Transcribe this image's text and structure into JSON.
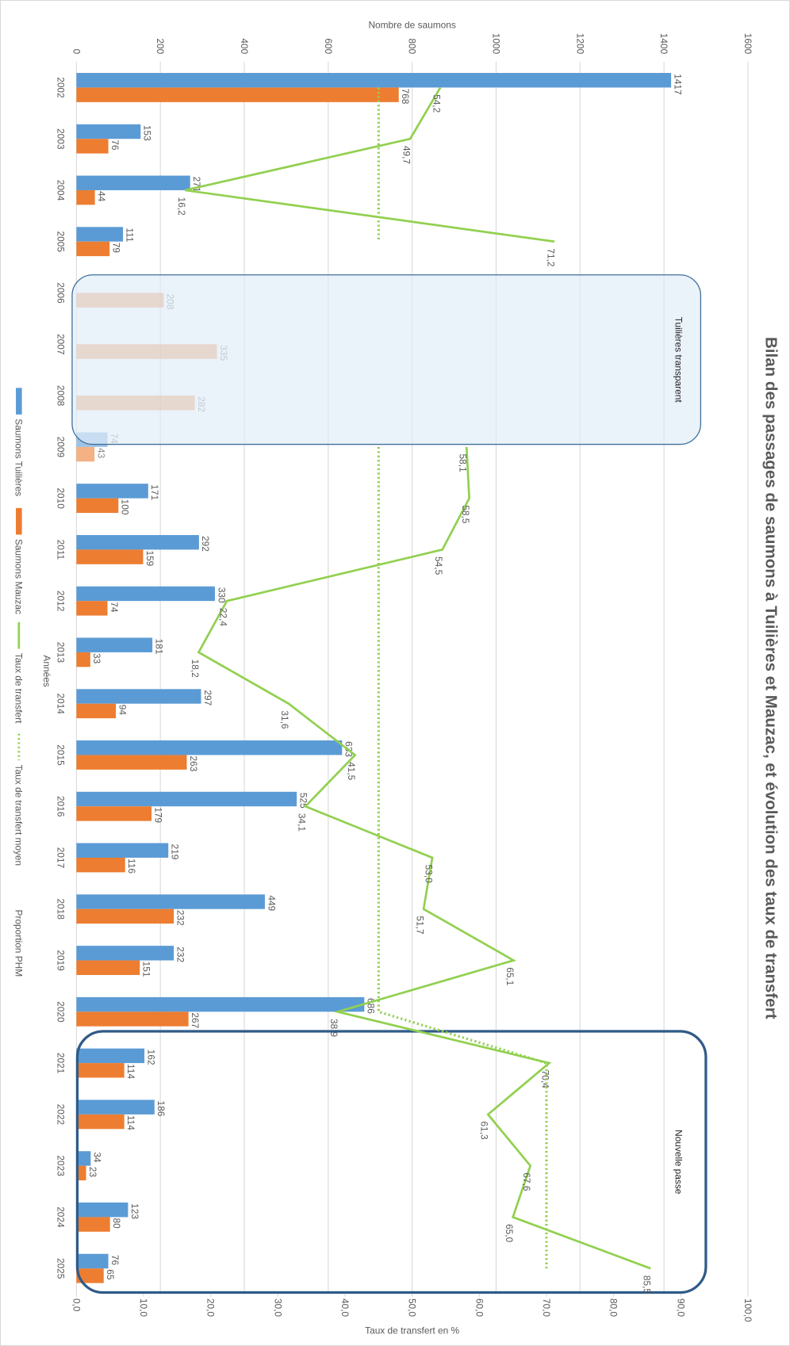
{
  "chart_data": {
    "type": "bar",
    "orientation": "horizontal",
    "title": "Bilan des passages de saumons à Tuilières et Mauzac, et évolution des taux de transfert",
    "x_axis_title": "Années",
    "y_label": "Nombre de saumons",
    "y2_label": "Taux de transfert en %",
    "categories": [
      "2002",
      "2003",
      "2004",
      "2005",
      "2006",
      "2007",
      "2008",
      "2009",
      "2010",
      "2011",
      "2012",
      "2013",
      "2014",
      "2015",
      "2016",
      "2017",
      "2018",
      "2019",
      "2020",
      "2021",
      "2022",
      "2023",
      "2024",
      "2025"
    ],
    "ylim": [
      0,
      1600
    ],
    "yticks": [
      0,
      200,
      400,
      600,
      800,
      1000,
      1200,
      1400,
      1600
    ],
    "y2lim": [
      0,
      100
    ],
    "y2ticks": [
      {
        "value": 0,
        "label": "0,0"
      },
      {
        "value": 10,
        "label": "10,0"
      },
      {
        "value": 20,
        "label": "20,0"
      },
      {
        "value": 30,
        "label": "30,0"
      },
      {
        "value": 40,
        "label": "40,0"
      },
      {
        "value": 50,
        "label": "50,0"
      },
      {
        "value": 60,
        "label": "60,0"
      },
      {
        "value": 70,
        "label": "70,0"
      },
      {
        "value": 80,
        "label": "80,0"
      },
      {
        "value": 90,
        "label": "90,0"
      },
      {
        "value": 100,
        "label": "100,0"
      }
    ],
    "grid": true,
    "series": [
      {
        "name": "Saumons Tuilières",
        "type": "bar",
        "color": "#5b9bd5",
        "values": [
          1417,
          153,
          271,
          111,
          null,
          null,
          null,
          74,
          171,
          292,
          330,
          181,
          297,
          633,
          525,
          219,
          449,
          232,
          686,
          162,
          186,
          34,
          123,
          76
        ]
      },
      {
        "name": "Saumons Mauzac",
        "type": "bar",
        "color": "#ed7d31",
        "values": [
          768,
          76,
          44,
          79,
          208,
          335,
          282,
          43,
          100,
          159,
          74,
          33,
          94,
          263,
          179,
          116,
          232,
          151,
          267,
          114,
          114,
          23,
          80,
          65
        ]
      },
      {
        "name": "Taux de transfert",
        "type": "line",
        "axis": "y2",
        "color": "#92d050",
        "values": [
          54.2,
          49.7,
          16.2,
          71.2,
          null,
          null,
          null,
          58.1,
          58.5,
          54.5,
          22.4,
          18.2,
          31.6,
          41.5,
          34.1,
          53.0,
          51.7,
          65.1,
          38.9,
          70.4,
          61.3,
          67.6,
          65.0,
          85.5
        ],
        "value_labels": [
          "54,2",
          "49,7",
          "16,2",
          "71,2",
          null,
          null,
          null,
          "58,1",
          "58,5",
          "54,5",
          "22,4",
          "18,2",
          "31,6",
          "41,5",
          "34,1",
          "53,0",
          "51,7",
          "65,1",
          "38,9",
          "70,4",
          "61,3",
          "67,6",
          "65,0",
          "85,5"
        ]
      },
      {
        "name": "Taux de transfert moyen",
        "type": "line",
        "axis": "y2",
        "color": "#92d050",
        "dash": "dotted",
        "values": [
          45,
          45,
          45,
          45,
          null,
          null,
          null,
          45,
          45,
          45,
          45,
          45,
          45,
          45,
          45,
          45,
          45,
          45,
          45,
          70,
          70,
          70,
          70,
          70
        ]
      }
    ],
    "legend_extra_labels": [
      "Proportion PHM"
    ],
    "annotations": [
      {
        "text": "Tuilières transparent",
        "from": "2006",
        "to": "2009",
        "faded": true
      },
      {
        "text": "Nouvelle passe",
        "from": "2021",
        "to": "2025"
      }
    ]
  }
}
